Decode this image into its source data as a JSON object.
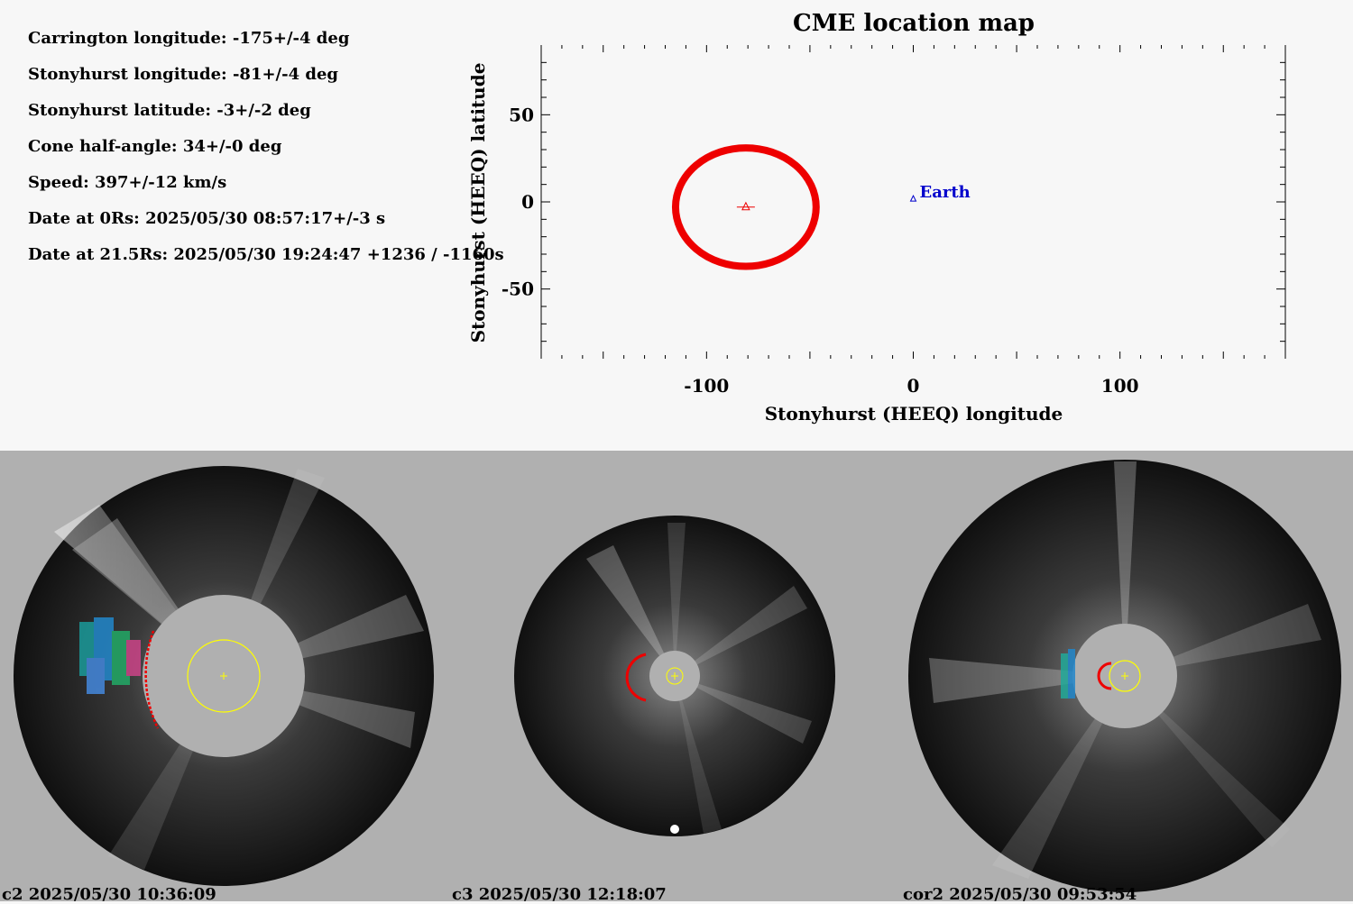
{
  "parameters": [
    "Carrington longitude: -175+/-4 deg",
    "Stonyhurst longitude: -81+/-4 deg",
    "Stonyhurst latitude: -3+/-2 deg",
    "Cone half-angle: 34+/-0 deg",
    "Speed: 397+/-12 km/s",
    "Date at 0Rs: 2025/05/30 08:57:17+/-3 s",
    "Date at 21.5Rs: 2025/05/30 19:24:47 +1236 / -1160s"
  ],
  "chart_data": {
    "type": "scatter",
    "title": "CME location map",
    "xlabel": "Stonyhurst (HEEQ) longitude",
    "ylabel": "Stonyhurst (HEEQ) latitude",
    "xlim": [
      -180,
      180
    ],
    "ylim": [
      -90,
      90
    ],
    "x_ticks": [
      -100,
      0,
      100
    ],
    "y_ticks": [
      50,
      0,
      -50
    ],
    "cme": {
      "longitude": -81,
      "latitude": -3,
      "half_angle": 34,
      "color": "#ee0000"
    },
    "earth": {
      "longitude": 0,
      "latitude": 2,
      "label": "Earth",
      "color": "#0000cc"
    }
  },
  "images": [
    {
      "caption": "c2 2025/05/30 10:36:09"
    },
    {
      "caption": "c3 2025/05/30 12:18:07"
    },
    {
      "caption": "cor2 2025/05/30 09:53:54"
    }
  ]
}
